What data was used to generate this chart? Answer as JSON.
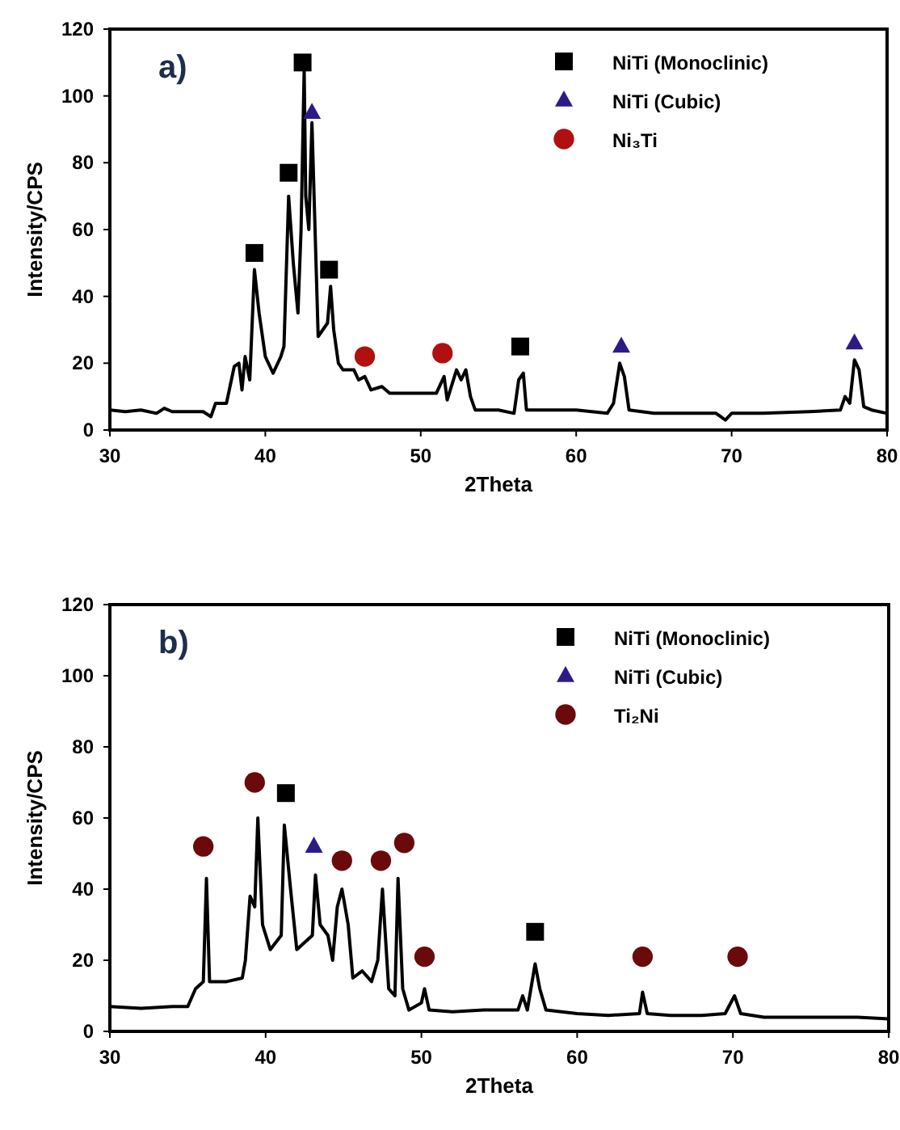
{
  "chart_data": [
    {
      "type": "line",
      "title": "a)",
      "xlabel": "2Theta",
      "ylabel": "Intensity/CPS",
      "xlim": [
        30,
        80
      ],
      "ylim": [
        0,
        120
      ],
      "xticks": [
        30,
        40,
        50,
        60,
        70,
        80
      ],
      "yticks": [
        0,
        20,
        40,
        60,
        80,
        100,
        120
      ],
      "grid": false,
      "legend": "top right",
      "series": [
        {
          "color": "#000000",
          "marker": "none",
          "x": [
            30,
            31,
            32,
            33,
            33.5,
            34,
            35,
            36,
            36.5,
            36.8,
            37.5,
            38,
            38.3,
            38.5,
            38.7,
            39,
            39.3,
            39.6,
            40,
            40.5,
            41,
            41.2,
            41.5,
            41.8,
            42.1,
            42.3,
            42.5,
            42.6,
            42.8,
            43,
            43.2,
            43.4,
            43.7,
            44,
            44.2,
            44.4,
            44.7,
            45,
            45.7,
            46,
            46.4,
            46.8,
            47.5,
            48,
            50,
            51,
            51.5,
            51.7,
            52.3,
            52.6,
            52.9,
            53.2,
            53.5,
            55,
            56,
            56.3,
            56.6,
            56.8,
            58,
            60,
            62,
            62.4,
            62.8,
            63.1,
            63.4,
            65,
            67,
            69,
            69.6,
            70,
            72,
            75,
            77,
            77.3,
            77.6,
            77.9,
            78.2,
            78.5,
            79,
            80
          ],
          "values": [
            6,
            5.5,
            6,
            5,
            6.5,
            5.5,
            5.5,
            5.5,
            4,
            8,
            8,
            19,
            20,
            12,
            22,
            15,
            48,
            35,
            22,
            17,
            22,
            25,
            70,
            50,
            35,
            60,
            108,
            70,
            60,
            92,
            60,
            28,
            30,
            32,
            43,
            30,
            20,
            18,
            18,
            15,
            16,
            12,
            13,
            11,
            11,
            11,
            16,
            9,
            18,
            15,
            18,
            10,
            6,
            6,
            5,
            15,
            17,
            6,
            6,
            6,
            5,
            8,
            20,
            16,
            6,
            5,
            5,
            5,
            3,
            5,
            5,
            5.5,
            6,
            10,
            8,
            21,
            18,
            7,
            6,
            5
          ]
        },
        {
          "type": "scatter",
          "name": "NiTi (Monoclinic)",
          "color": "#000000",
          "marker": "square",
          "x": [
            39.3,
            41.5,
            42.4,
            44.1,
            56.4
          ],
          "values": [
            53,
            77,
            110,
            48,
            25
          ]
        },
        {
          "type": "scatter",
          "name": "NiTi (Cubic)",
          "color": "#2e1a87",
          "marker": "triangle",
          "x": [
            43,
            62.9,
            77.9
          ],
          "values": [
            95,
            25,
            26
          ]
        },
        {
          "type": "scatter",
          "name": "Ni₃Ti",
          "color": "#b01010",
          "marker": "circle",
          "x": [
            46.4,
            51.4
          ],
          "values": [
            22,
            23
          ]
        }
      ]
    },
    {
      "type": "line",
      "title": "b)",
      "xlabel": "2Theta",
      "ylabel": "Intensity/CPS",
      "xlim": [
        30,
        80
      ],
      "ylim": [
        0,
        120
      ],
      "xticks": [
        30,
        40,
        50,
        60,
        70,
        80
      ],
      "yticks": [
        0,
        20,
        40,
        60,
        80,
        100,
        120
      ],
      "grid": false,
      "legend": "top right",
      "series": [
        {
          "color": "#000000",
          "marker": "none",
          "x": [
            30,
            32,
            34,
            35,
            35.5,
            36,
            36.2,
            36.4,
            37.5,
            38.5,
            38.7,
            39,
            39.3,
            39.5,
            39.8,
            40.3,
            41,
            41.2,
            41.6,
            42,
            42.5,
            43,
            43.2,
            43.5,
            44,
            44.3,
            44.6,
            44.9,
            45.3,
            45.6,
            46.2,
            46.8,
            47.2,
            47.5,
            47.9,
            48.3,
            48.5,
            48.8,
            49.2,
            50,
            50.2,
            50.5,
            52,
            54,
            56.2,
            56.5,
            56.8,
            57.3,
            57.6,
            58,
            60,
            62,
            64,
            64.2,
            64.5,
            66,
            68,
            69.5,
            70.1,
            70.5,
            72,
            75,
            78,
            80
          ],
          "values": [
            7,
            6.5,
            7,
            7,
            12,
            14,
            43,
            14,
            14,
            15,
            20,
            38,
            35,
            60,
            30,
            23,
            27,
            58,
            40,
            23,
            25,
            27,
            44,
            30,
            27,
            20,
            35,
            40,
            30,
            15,
            17,
            14,
            20,
            40,
            12,
            10,
            43,
            12,
            6,
            8,
            12,
            6,
            5.5,
            6,
            6,
            10,
            6,
            19,
            12,
            6,
            5,
            4.5,
            5,
            11,
            5,
            4.5,
            4.5,
            5,
            10,
            5,
            4,
            4,
            4,
            3.5
          ]
        },
        {
          "type": "scatter",
          "name": "NiTi (Monoclinic)",
          "color": "#000000",
          "marker": "square",
          "x": [
            41.3,
            57.3
          ],
          "values": [
            67,
            28
          ]
        },
        {
          "type": "scatter",
          "name": "NiTi (Cubic)",
          "color": "#2e1a87",
          "marker": "triangle",
          "x": [
            43.1
          ],
          "values": [
            52
          ]
        },
        {
          "type": "scatter",
          "name": "Ti₂Ni",
          "color": "#6b0a0a",
          "marker": "circle",
          "x": [
            36,
            39.3,
            44.9,
            47.4,
            48.9,
            50.2,
            64.2,
            70.3
          ],
          "values": [
            52,
            70,
            48,
            48,
            53,
            21,
            21,
            21
          ]
        }
      ]
    }
  ]
}
